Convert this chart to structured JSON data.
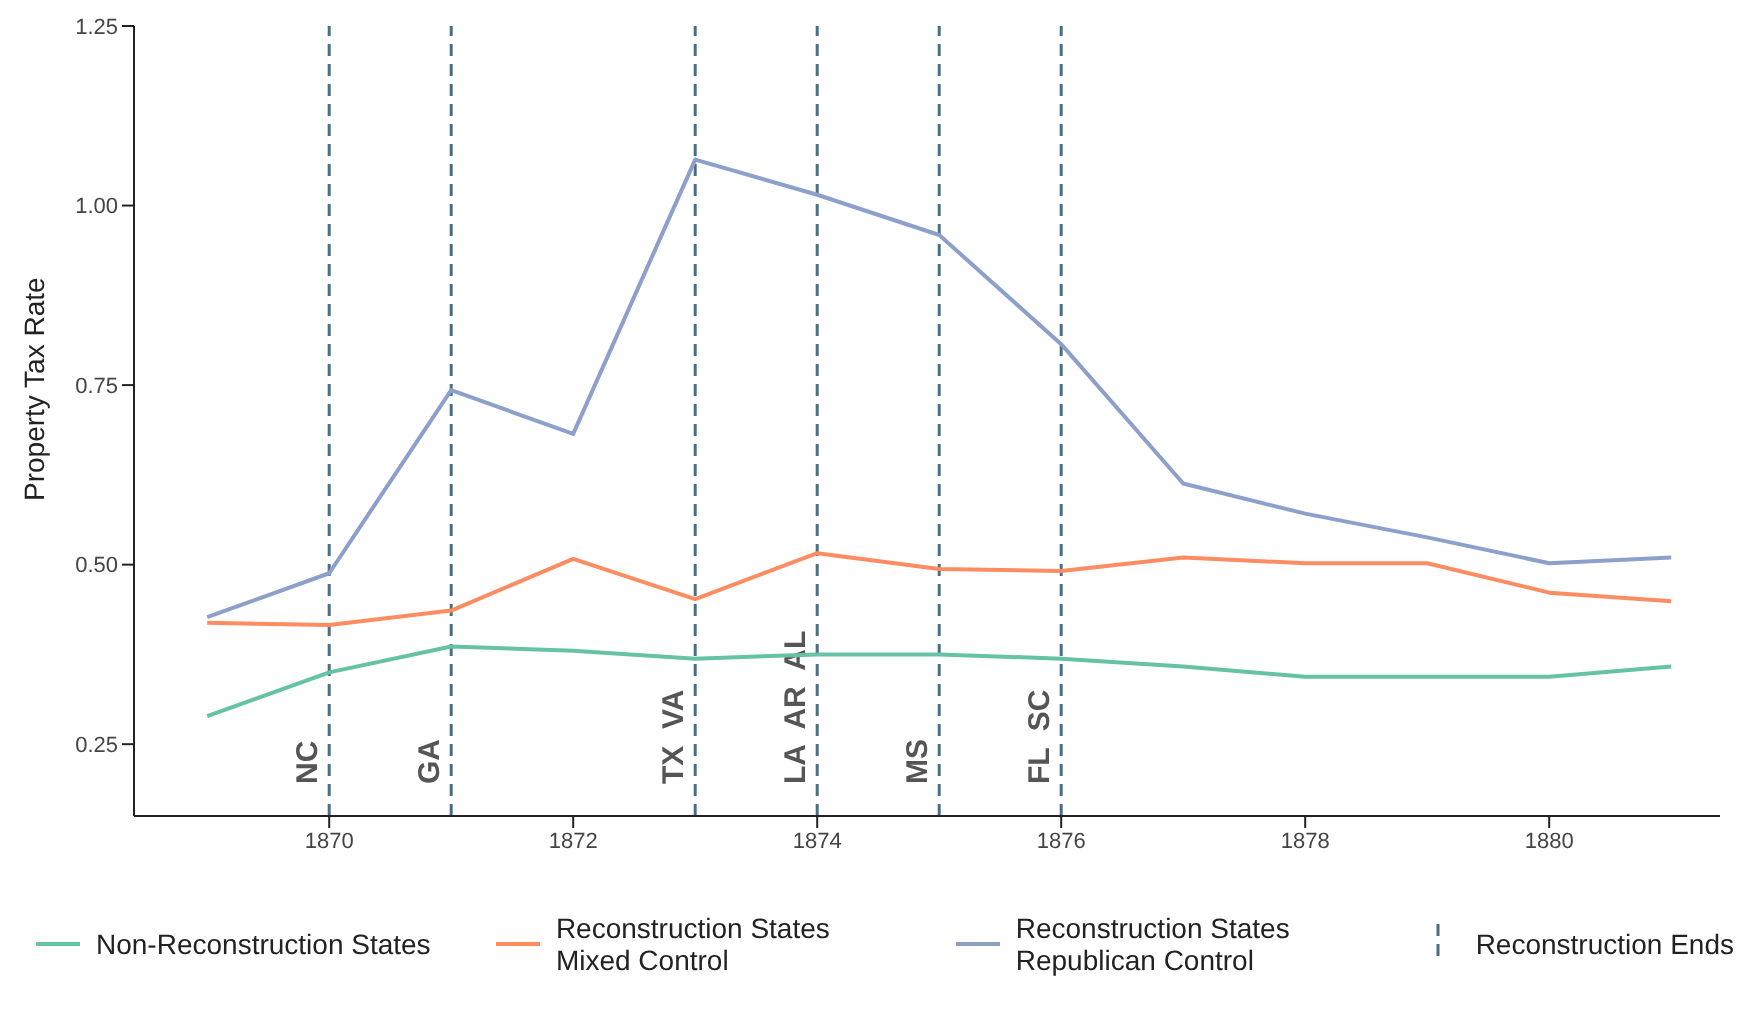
{
  "chart_data": {
    "type": "line",
    "ylabel": "Property Tax Rate",
    "x": [
      1869,
      1870,
      1871,
      1872,
      1873,
      1874,
      1875,
      1876,
      1877,
      1878,
      1879,
      1880,
      1881
    ],
    "series": [
      {
        "name": "Non-Reconstruction States",
        "color": "#66c2a5",
        "values": [
          0.289,
          0.35,
          0.386,
          0.38,
          0.369,
          0.375,
          0.375,
          0.369,
          0.358,
          0.344,
          0.344,
          0.344,
          0.358
        ]
      },
      {
        "name": "Reconstruction States Mixed Control",
        "color": "#fc8d62",
        "values": [
          0.419,
          0.416,
          0.436,
          0.508,
          0.452,
          0.516,
          0.494,
          0.491,
          0.51,
          0.502,
          0.502,
          0.461,
          0.449
        ]
      },
      {
        "name": "Reconstruction States Republican Control",
        "color": "#8da0cb",
        "values": [
          0.427,
          0.488,
          0.743,
          0.682,
          1.064,
          1.015,
          0.959,
          0.807,
          0.613,
          0.571,
          0.538,
          0.502,
          0.51
        ]
      }
    ],
    "xlim": [
      1868.4,
      1881.4
    ],
    "xticks": [
      1870,
      1872,
      1874,
      1876,
      1878,
      1880
    ],
    "ylim": [
      0.15,
      1.25
    ],
    "yticks": [
      {
        "value": 0.25,
        "label": "0.25"
      },
      {
        "value": 0.5,
        "label": "0.50"
      },
      {
        "value": 0.75,
        "label": "0.75"
      },
      {
        "value": 1,
        "label": "1.00"
      },
      {
        "value": 1.25,
        "label": "1.25"
      }
    ],
    "ref_lines": [
      {
        "axis": "x",
        "value": 1870,
        "label": "NC",
        "color": "#4a6f84",
        "line_style": "dashed"
      },
      {
        "axis": "x",
        "value": 1871,
        "label": "GA",
        "color": "#4a6f84",
        "line_style": "dashed"
      },
      {
        "axis": "x",
        "value": 1873,
        "label": "TX  VA",
        "color": "#4a6f84",
        "line_style": "dashed"
      },
      {
        "axis": "x",
        "value": 1874,
        "label": "LA  AR  AL",
        "color": "#4a6f84",
        "line_style": "dashed"
      },
      {
        "axis": "x",
        "value": 1875,
        "label": "MS",
        "color": "#4a6f84",
        "line_style": "dashed"
      },
      {
        "axis": "x",
        "value": 1876,
        "label": "FL  SC",
        "color": "#4a6f84",
        "line_style": "dashed"
      }
    ],
    "annotations": [
      "Reconstruction Ends"
    ],
    "grid": false,
    "legend": "bottom",
    "marker": "none",
    "line_style": "solid"
  }
}
